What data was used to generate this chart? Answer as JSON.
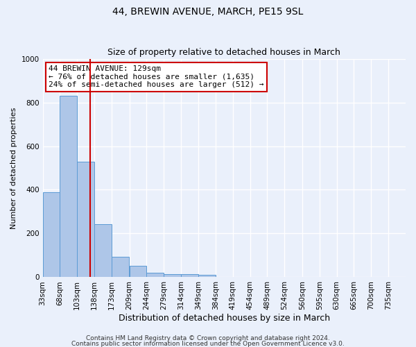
{
  "title": "44, BREWIN AVENUE, MARCH, PE15 9SL",
  "subtitle": "Size of property relative to detached houses in March",
  "xlabel": "Distribution of detached houses by size in March",
  "ylabel": "Number of detached properties",
  "footer_line1": "Contains HM Land Registry data © Crown copyright and database right 2024.",
  "footer_line2": "Contains public sector information licensed under the Open Government Licence v3.0.",
  "bin_labels": [
    "33sqm",
    "68sqm",
    "103sqm",
    "138sqm",
    "173sqm",
    "209sqm",
    "244sqm",
    "279sqm",
    "314sqm",
    "349sqm",
    "384sqm",
    "419sqm",
    "454sqm",
    "489sqm",
    "524sqm",
    "560sqm",
    "595sqm",
    "630sqm",
    "665sqm",
    "700sqm",
    "735sqm"
  ],
  "bin_edges": [
    33,
    68,
    103,
    138,
    173,
    209,
    244,
    279,
    314,
    349,
    384,
    419,
    454,
    489,
    524,
    560,
    595,
    630,
    665,
    700,
    735,
    770
  ],
  "bar_values": [
    390,
    830,
    530,
    243,
    95,
    52,
    20,
    15,
    13,
    10,
    0,
    0,
    0,
    0,
    0,
    0,
    0,
    0,
    0,
    0,
    0
  ],
  "bar_color": "#aec6e8",
  "bar_edge_color": "#5b9bd5",
  "property_size": 129,
  "annotation_text_line1": "44 BREWIN AVENUE: 129sqm",
  "annotation_text_line2": "← 76% of detached houses are smaller (1,635)",
  "annotation_text_line3": "24% of semi-detached houses are larger (512) →",
  "annotation_box_color": "#ffffff",
  "annotation_box_edge": "#cc0000",
  "ylim": [
    0,
    1000
  ],
  "background_color": "#eaf0fb",
  "grid_color": "#ffffff",
  "title_fontsize": 10,
  "subtitle_fontsize": 9,
  "xlabel_fontsize": 9,
  "ylabel_fontsize": 8,
  "tick_fontsize": 7.5,
  "annotation_fontsize": 8,
  "footer_fontsize": 6.5
}
